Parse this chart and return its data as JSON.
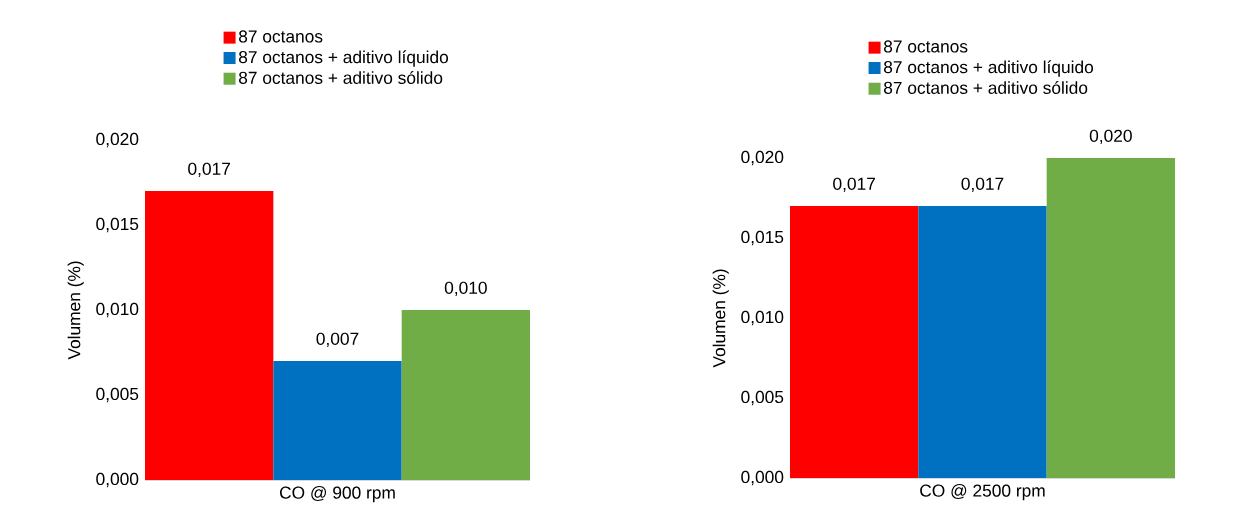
{
  "chart_data": [
    {
      "type": "bar",
      "categories": [
        "CO @ 900 rpm"
      ],
      "ylabel": "Volumen (%)",
      "ylim": [
        0,
        0.02
      ],
      "yticks": [
        {
          "value": 0,
          "label": "0,000"
        },
        {
          "value": 0.005,
          "label": "0,005"
        },
        {
          "value": 0.01,
          "label": "0,010"
        },
        {
          "value": 0.015,
          "label": "0,015"
        },
        {
          "value": 0.02,
          "label": "0,020"
        }
      ],
      "legend": "top",
      "series": [
        {
          "name": "87 octanos",
          "color": "#ff0000",
          "values": [
            0.017
          ],
          "value_labels": [
            "0,017"
          ]
        },
        {
          "name": "87 octanos + aditivo líquido",
          "color": "#0070c0",
          "values": [
            0.007
          ],
          "value_labels": [
            "0,007"
          ]
        },
        {
          "name": "87 octanos + aditivo sólido",
          "color": "#70ad47",
          "values": [
            0.01
          ],
          "value_labels": [
            "0,010"
          ]
        }
      ]
    },
    {
      "type": "bar",
      "categories": [
        "CO @ 2500 rpm"
      ],
      "ylabel": "Volumen (%)",
      "ylim": [
        0,
        0.02
      ],
      "yticks": [
        {
          "value": 0,
          "label": "0,000"
        },
        {
          "value": 0.005,
          "label": "0,005"
        },
        {
          "value": 0.01,
          "label": "0,010"
        },
        {
          "value": 0.015,
          "label": "0,015"
        },
        {
          "value": 0.02,
          "label": "0,020"
        }
      ],
      "legend": "top",
      "series": [
        {
          "name": "87 octanos",
          "color": "#ff0000",
          "values": [
            0.017
          ],
          "value_labels": [
            "0,017"
          ]
        },
        {
          "name": "87 octanos + aditivo líquido",
          "color": "#0070c0",
          "values": [
            0.017
          ],
          "value_labels": [
            "0,017"
          ]
        },
        {
          "name": "87 octanos + aditivo sólido",
          "color": "#70ad47",
          "values": [
            0.02
          ],
          "value_labels": [
            "0,020"
          ]
        }
      ]
    }
  ]
}
